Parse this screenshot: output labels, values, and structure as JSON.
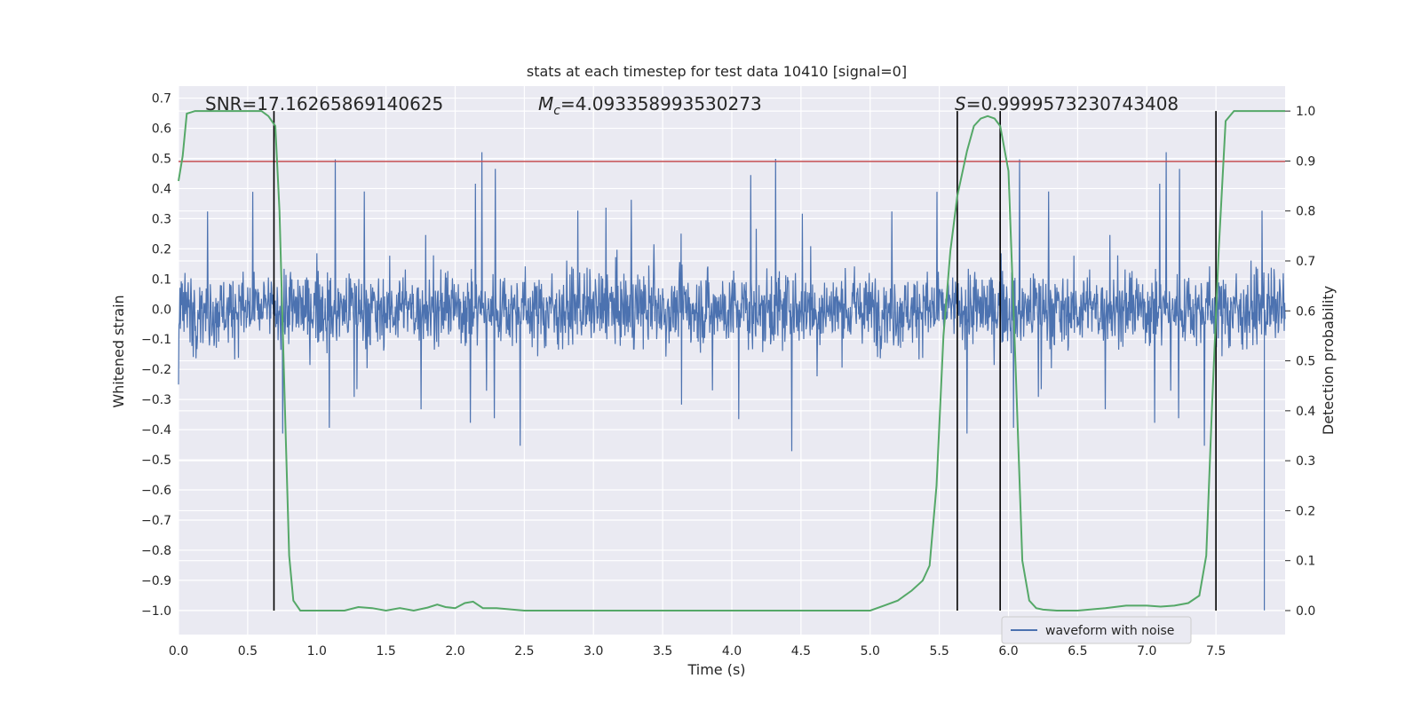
{
  "chart_data": {
    "type": "line",
    "title": "stats at each timestep for test data 10410 [signal=0]",
    "xlabel": "Time (s)",
    "ylabel_left": "Whitened strain",
    "ylabel_right": "Detection probability",
    "xlim": [
      0.0,
      8.0
    ],
    "ylim_left": [
      -1.08,
      0.74
    ],
    "ylim_right": [
      -0.048,
      1.05
    ],
    "x_ticks": [
      "0.0",
      "0.5",
      "1.0",
      "1.5",
      "2.0",
      "2.5",
      "3.0",
      "3.5",
      "4.0",
      "4.5",
      "5.0",
      "5.5",
      "6.0",
      "6.5",
      "7.0",
      "7.5"
    ],
    "y_left_ticks": [
      "0.7",
      "0.6",
      "0.5",
      "0.4",
      "0.3",
      "0.2",
      "0.1",
      "0.0",
      "−0.1",
      "−0.2",
      "−0.3",
      "−0.4",
      "−0.5",
      "−0.6",
      "−0.7",
      "−0.8",
      "−0.9",
      "−1.0"
    ],
    "y_right_ticks": [
      "1.0",
      "0.9",
      "0.8",
      "0.7",
      "0.6",
      "0.5",
      "0.4",
      "0.3",
      "0.2",
      "0.1",
      "0.0"
    ],
    "grid": true,
    "annotations": {
      "snr": "SNR=17.16265869140625",
      "mc_symbol": "M",
      "mc_subscript": "c",
      "mc_value": "=4.093358993530273",
      "s_symbol": "S",
      "s_value": "=0.9999573230743408"
    },
    "threshold_strain": 0.49,
    "vertical_lines_time": [
      0.69,
      5.63,
      5.94,
      7.5
    ],
    "series": [
      {
        "name": "waveform with noise",
        "axis": "left",
        "color": "#4c72b0",
        "description": "whitened strain noise, amplitude roughly within ±0.3 with spikes to ±0.6",
        "core_amplitude": 0.3,
        "spike_amplitude": 0.6,
        "min_spike": -1.0
      },
      {
        "name": "detection probability",
        "axis": "right",
        "color": "#55a868",
        "x": [
          0.0,
          0.03,
          0.06,
          0.12,
          0.2,
          0.3,
          0.4,
          0.5,
          0.6,
          0.65,
          0.7,
          0.73,
          0.77,
          0.8,
          0.83,
          0.88,
          0.95,
          1.0,
          1.1,
          1.2,
          1.3,
          1.4,
          1.5,
          1.6,
          1.7,
          1.8,
          1.87,
          1.93,
          2.0,
          2.07,
          2.13,
          2.2,
          2.3,
          2.5,
          2.7,
          3.0,
          3.5,
          4.0,
          4.5,
          4.8,
          5.0,
          5.1,
          5.2,
          5.3,
          5.38,
          5.43,
          5.48,
          5.53,
          5.58,
          5.63,
          5.7,
          5.75,
          5.8,
          5.85,
          5.9,
          5.94,
          6.0,
          6.05,
          6.1,
          6.15,
          6.2,
          6.25,
          6.35,
          6.5,
          6.7,
          6.85,
          7.0,
          7.1,
          7.2,
          7.3,
          7.38,
          7.43,
          7.47,
          7.52,
          7.57,
          7.63,
          7.7,
          8.0
        ],
        "values": [
          0.86,
          0.91,
          0.995,
          1.0,
          1.0,
          1.0,
          1.0,
          1.0,
          1.0,
          0.99,
          0.97,
          0.8,
          0.4,
          0.11,
          0.02,
          0.0,
          0.0,
          0.0,
          0.0,
          0.0,
          0.007,
          0.005,
          0.0,
          0.005,
          0.0,
          0.006,
          0.012,
          0.007,
          0.005,
          0.015,
          0.018,
          0.005,
          0.005,
          0.0,
          0.0,
          0.0,
          0.0,
          0.0,
          0.0,
          0.0,
          0.0,
          0.01,
          0.02,
          0.04,
          0.06,
          0.09,
          0.25,
          0.55,
          0.72,
          0.83,
          0.92,
          0.97,
          0.985,
          0.99,
          0.985,
          0.97,
          0.88,
          0.5,
          0.1,
          0.02,
          0.005,
          0.002,
          0.0,
          0.0,
          0.005,
          0.01,
          0.01,
          0.008,
          0.01,
          0.015,
          0.03,
          0.11,
          0.4,
          0.72,
          0.98,
          1.0,
          1.0,
          1.0
        ]
      }
    ],
    "legend": {
      "label": "waveform with noise",
      "placement": "lower-right"
    }
  }
}
